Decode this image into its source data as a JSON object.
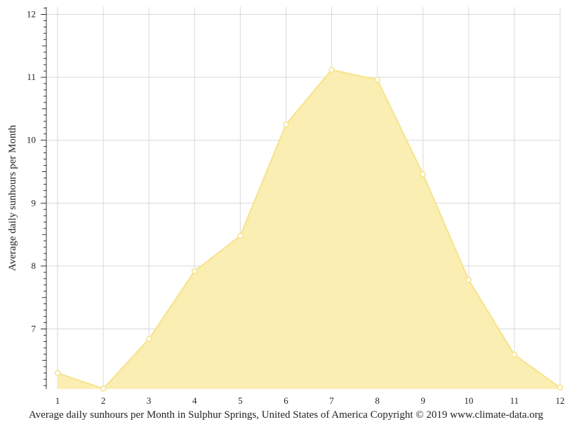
{
  "chart_data": {
    "type": "area",
    "title": "",
    "xlabel": "",
    "ylabel": "Average daily sunhours per Month",
    "x": [
      1,
      2,
      3,
      4,
      5,
      6,
      7,
      8,
      9,
      10,
      11,
      12
    ],
    "x_tick_labels": [
      "1",
      "2",
      "3",
      "4",
      "5",
      "6",
      "7",
      "8",
      "9",
      "10",
      "11",
      "12"
    ],
    "y_tick_labels": [
      "7",
      "8",
      "9",
      "10",
      "11",
      "12"
    ],
    "series": [
      {
        "values": [
          6.3,
          6.05,
          6.84,
          7.92,
          8.48,
          10.25,
          11.12,
          10.96,
          9.46,
          7.78,
          6.59,
          6.07
        ]
      }
    ],
    "xlim": [
      1,
      12
    ],
    "ylim": [
      6.05,
      12.1
    ],
    "grid": true,
    "colors": {
      "fill": "#faeeb2",
      "line": "#f7e38c",
      "marker_fill": "#ffffff",
      "grid": "#d9d9d9",
      "axis": "#333333"
    }
  },
  "footer": {
    "caption": "Average daily sunhours per Month in Sulphur Springs, United States of America Copyright © 2019 www.climate-data.org"
  }
}
